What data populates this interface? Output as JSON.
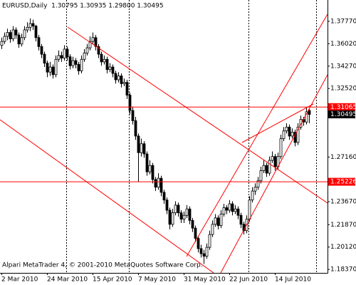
{
  "chart_data": {
    "type": "candlestick",
    "title": "EURUSD,Daily  1.30795 1.30935 1.29800 1.30495",
    "footer": "Alpari MetaTrader 4, © 2001-2010 MetaQuotes Software Corp.",
    "categories": [
      "2 Mar 2010",
      null,
      null,
      null,
      null,
      null,
      null,
      null,
      null,
      null,
      null,
      null,
      null,
      null,
      null,
      null,
      "24 Mar 2010",
      null,
      null,
      null,
      null,
      null,
      null,
      null,
      null,
      null,
      null,
      null,
      null,
      null,
      null,
      null,
      "15 Apr 2010",
      null,
      null,
      null,
      null,
      null,
      null,
      null,
      null,
      null,
      null,
      null,
      null,
      null,
      null,
      null,
      "7 May 2010",
      null,
      null,
      null,
      null,
      null,
      null,
      null,
      null,
      null,
      null,
      null,
      null,
      null,
      null,
      null,
      "31 May 2010",
      null,
      null,
      null,
      null,
      null,
      null,
      null,
      null,
      null,
      null,
      null,
      null,
      null,
      null,
      null,
      "22 Jun 2010",
      null,
      null,
      null,
      null,
      null,
      null,
      null,
      null,
      null,
      null,
      null,
      null,
      null,
      null,
      null,
      "14 Jul 2010",
      null,
      null,
      null,
      null,
      null,
      null,
      null,
      null,
      null,
      null,
      null,
      null
    ],
    "ohlc": [
      [
        1.359,
        1.365,
        1.356,
        1.362
      ],
      [
        1.362,
        1.369,
        1.36,
        1.366
      ],
      [
        1.366,
        1.372,
        1.363,
        1.369
      ],
      [
        1.369,
        1.371,
        1.361,
        1.364
      ],
      [
        1.364,
        1.374,
        1.362,
        1.371
      ],
      [
        1.371,
        1.373,
        1.364,
        1.367
      ],
      [
        1.367,
        1.369,
        1.357,
        1.36
      ],
      [
        1.36,
        1.368,
        1.358,
        1.365
      ],
      [
        1.365,
        1.374,
        1.363,
        1.371
      ],
      [
        1.371,
        1.377,
        1.369,
        1.373
      ],
      [
        1.373,
        1.38,
        1.37,
        1.376
      ],
      [
        1.376,
        1.379,
        1.371,
        1.374
      ],
      [
        1.374,
        1.375,
        1.362,
        1.365
      ],
      [
        1.365,
        1.367,
        1.355,
        1.358
      ],
      [
        1.358,
        1.36,
        1.349,
        1.352
      ],
      [
        1.352,
        1.354,
        1.342,
        1.345
      ],
      [
        1.345,
        1.347,
        1.334,
        1.338
      ],
      [
        1.338,
        1.346,
        1.335,
        1.342
      ],
      [
        1.342,
        1.344,
        1.333,
        1.336
      ],
      [
        1.336,
        1.351,
        1.334,
        1.348
      ],
      [
        1.348,
        1.355,
        1.346,
        1.351
      ],
      [
        1.351,
        1.354,
        1.346,
        1.349
      ],
      [
        1.349,
        1.359,
        1.347,
        1.356
      ],
      [
        1.356,
        1.358,
        1.347,
        1.35
      ],
      [
        1.35,
        1.352,
        1.34,
        1.343
      ],
      [
        1.343,
        1.35,
        1.341,
        1.347
      ],
      [
        1.347,
        1.349,
        1.341,
        1.344
      ],
      [
        1.344,
        1.346,
        1.336,
        1.339
      ],
      [
        1.339,
        1.351,
        1.337,
        1.348
      ],
      [
        1.348,
        1.356,
        1.346,
        1.353
      ],
      [
        1.353,
        1.36,
        1.351,
        1.357
      ],
      [
        1.357,
        1.366,
        1.355,
        1.362
      ],
      [
        1.362,
        1.369,
        1.36,
        1.365
      ],
      [
        1.365,
        1.367,
        1.355,
        1.358
      ],
      [
        1.358,
        1.36,
        1.349,
        1.352
      ],
      [
        1.352,
        1.354,
        1.343,
        1.346
      ],
      [
        1.346,
        1.351,
        1.344,
        1.348
      ],
      [
        1.348,
        1.35,
        1.337,
        1.34
      ],
      [
        1.34,
        1.345,
        1.338,
        1.342
      ],
      [
        1.342,
        1.344,
        1.334,
        1.337
      ],
      [
        1.337,
        1.339,
        1.329,
        1.332
      ],
      [
        1.332,
        1.338,
        1.33,
        1.335
      ],
      [
        1.335,
        1.337,
        1.326,
        1.329
      ],
      [
        1.329,
        1.333,
        1.327,
        1.33
      ],
      [
        1.33,
        1.332,
        1.317,
        1.32
      ],
      [
        1.32,
        1.322,
        1.305,
        1.308
      ],
      [
        1.308,
        1.311,
        1.297,
        1.3
      ],
      [
        1.3,
        1.303,
        1.285,
        1.288
      ],
      [
        1.288,
        1.29,
        1.252,
        1.275
      ],
      [
        1.275,
        1.286,
        1.272,
        1.282
      ],
      [
        1.282,
        1.284,
        1.271,
        1.274
      ],
      [
        1.274,
        1.276,
        1.257,
        1.26
      ],
      [
        1.26,
        1.269,
        1.258,
        1.265
      ],
      [
        1.265,
        1.267,
        1.251,
        1.254
      ],
      [
        1.254,
        1.256,
        1.245,
        1.248
      ],
      [
        1.248,
        1.259,
        1.246,
        1.255
      ],
      [
        1.255,
        1.257,
        1.241,
        1.244
      ],
      [
        1.244,
        1.246,
        1.235,
        1.238
      ],
      [
        1.238,
        1.24,
        1.227,
        1.23
      ],
      [
        1.23,
        1.232,
        1.215,
        1.219
      ],
      [
        1.219,
        1.231,
        1.217,
        1.228
      ],
      [
        1.228,
        1.237,
        1.226,
        1.234
      ],
      [
        1.234,
        1.236,
        1.225,
        1.228
      ],
      [
        1.228,
        1.23,
        1.22,
        1.223
      ],
      [
        1.223,
        1.229,
        1.22,
        1.226
      ],
      [
        1.226,
        1.234,
        1.224,
        1.231
      ],
      [
        1.231,
        1.233,
        1.219,
        1.222
      ],
      [
        1.222,
        1.224,
        1.213,
        1.216
      ],
      [
        1.216,
        1.218,
        1.205,
        1.208
      ],
      [
        1.208,
        1.21,
        1.197,
        1.2
      ],
      [
        1.2,
        1.203,
        1.193,
        1.196
      ],
      [
        1.196,
        1.199,
        1.188,
        1.194
      ],
      [
        1.194,
        1.204,
        1.192,
        1.201
      ],
      [
        1.201,
        1.214,
        1.199,
        1.211
      ],
      [
        1.211,
        1.222,
        1.209,
        1.219
      ],
      [
        1.219,
        1.227,
        1.217,
        1.224
      ],
      [
        1.224,
        1.226,
        1.215,
        1.218
      ],
      [
        1.218,
        1.23,
        1.216,
        1.227
      ],
      [
        1.227,
        1.235,
        1.225,
        1.232
      ],
      [
        1.232,
        1.234,
        1.227,
        1.23
      ],
      [
        1.23,
        1.238,
        1.228,
        1.235
      ],
      [
        1.235,
        1.237,
        1.226,
        1.229
      ],
      [
        1.229,
        1.234,
        1.227,
        1.231
      ],
      [
        1.231,
        1.233,
        1.223,
        1.226
      ],
      [
        1.226,
        1.228,
        1.216,
        1.219
      ],
      [
        1.219,
        1.221,
        1.211,
        1.214
      ],
      [
        1.214,
        1.226,
        1.212,
        1.223
      ],
      [
        1.223,
        1.241,
        1.221,
        1.238
      ],
      [
        1.238,
        1.248,
        1.236,
        1.245
      ],
      [
        1.245,
        1.251,
        1.242,
        1.248
      ],
      [
        1.248,
        1.256,
        1.246,
        1.253
      ],
      [
        1.253,
        1.264,
        1.251,
        1.261
      ],
      [
        1.261,
        1.269,
        1.259,
        1.265
      ],
      [
        1.265,
        1.267,
        1.256,
        1.259
      ],
      [
        1.259,
        1.272,
        1.257,
        1.269
      ],
      [
        1.269,
        1.276,
        1.267,
        1.272
      ],
      [
        1.272,
        1.274,
        1.261,
        1.264
      ],
      [
        1.264,
        1.275,
        1.262,
        1.272
      ],
      [
        1.272,
        1.289,
        1.27,
        1.286
      ],
      [
        1.286,
        1.295,
        1.284,
        1.292
      ],
      [
        1.292,
        1.298,
        1.29,
        1.295
      ],
      [
        1.295,
        1.297,
        1.285,
        1.288
      ],
      [
        1.288,
        1.294,
        1.286,
        1.291
      ],
      [
        1.291,
        1.293,
        1.28,
        1.283
      ],
      [
        1.283,
        1.298,
        1.281,
        1.295
      ],
      [
        1.295,
        1.304,
        1.293,
        1.301
      ],
      [
        1.301,
        1.303,
        1.296,
        1.299
      ],
      [
        1.299,
        1.31,
        1.297,
        1.307
      ],
      [
        1.30795,
        1.30935,
        1.298,
        1.30495
      ]
    ],
    "up_color": "#ffffff",
    "down_color": "#000000",
    "line_color": "#000000",
    "ylim": [
      1.181,
      1.3944
    ],
    "yticks": [
      {
        "value": 1.3777,
        "label": "1.37770"
      },
      {
        "value": 1.3602,
        "label": "1.36020"
      },
      {
        "value": 1.3427,
        "label": "1.34270"
      },
      {
        "value": 1.3252,
        "label": "1.32520"
      },
      {
        "value": 1.2716,
        "label": "1.27160"
      },
      {
        "value": 1.2367,
        "label": "1.23670"
      },
      {
        "value": 1.2187,
        "label": "1.21870"
      },
      {
        "value": 1.2012,
        "label": "1.20120"
      },
      {
        "value": 1.1837,
        "label": "1.18370"
      }
    ],
    "levels": [
      1.31065,
      1.25226
    ],
    "level_color": "#ff0000",
    "last_price_color": "#000000"
  }
}
